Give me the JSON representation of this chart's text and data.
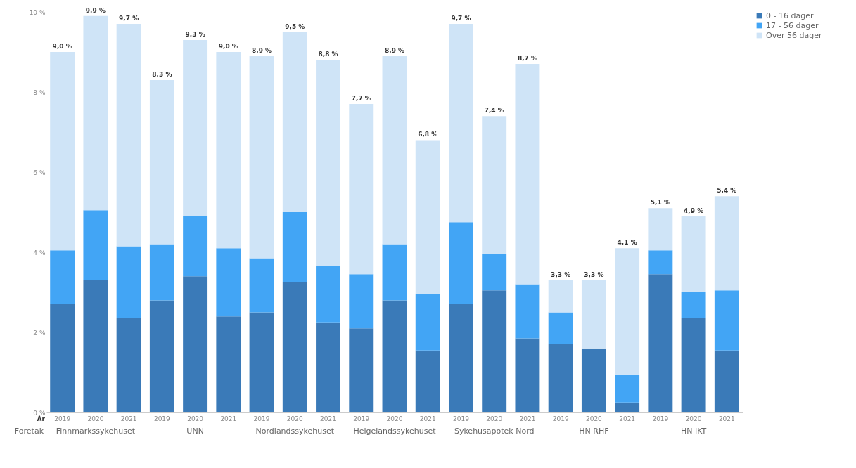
{
  "chart_data": {
    "type": "bar",
    "stacked": true,
    "categories": [
      "2019",
      "2020",
      "2021",
      "2019",
      "2020",
      "2021",
      "2019",
      "2020",
      "2021",
      "2019",
      "2020",
      "2021",
      "2019",
      "2020",
      "2021",
      "2019",
      "2020",
      "2021",
      "2019",
      "2020",
      "2021"
    ],
    "series": [
      {
        "name": "0 - 16 dager",
        "color": "#3a7ab8",
        "values": [
          2.7,
          3.3,
          2.35,
          2.8,
          3.4,
          2.4,
          2.5,
          3.25,
          2.25,
          2.1,
          2.8,
          1.55,
          2.7,
          3.05,
          1.85,
          1.7,
          1.6,
          0.25,
          3.45,
          2.35,
          1.55
        ]
      },
      {
        "name": "17 - 56 dager",
        "color": "#42a5f5",
        "values": [
          1.35,
          1.75,
          1.8,
          1.4,
          1.5,
          1.7,
          1.35,
          1.75,
          1.4,
          1.35,
          1.4,
          1.4,
          2.05,
          0.9,
          1.35,
          0.8,
          0,
          0.7,
          0.6,
          0.65,
          1.5
        ]
      },
      {
        "name": "Over 56 dager",
        "color": "#cfe4f7",
        "values": [
          4.95,
          4.85,
          5.55,
          4.1,
          4.4,
          4.9,
          5.05,
          4.5,
          5.15,
          4.25,
          4.7,
          3.85,
          4.95,
          3.45,
          5.5,
          0.8,
          1.7,
          3.15,
          1.05,
          1.9,
          2.35
        ]
      }
    ],
    "totals": [
      "9,0 %",
      "9,9 %",
      "9,7 %",
      "8,3 %",
      "9,3 %",
      "9,0 %",
      "8,9 %",
      "9,5 %",
      "8,8 %",
      "7,7 %",
      "8,9 %",
      "6,8 %",
      "9,7 %",
      "7,4 %",
      "8,7 %",
      "3,3 %",
      "3,3 %",
      "4,1 %",
      "5,1 %",
      "4,9 %",
      "5,4 %"
    ],
    "ylim": [
      0,
      10
    ],
    "yticks": [
      {
        "value": 0,
        "label": "0 %"
      },
      {
        "value": 2,
        "label": "2 %"
      },
      {
        "value": 4,
        "label": "4 %"
      },
      {
        "value": 6,
        "label": "6 %"
      },
      {
        "value": 8,
        "label": "8 %"
      },
      {
        "value": 10,
        "label": "10 %"
      }
    ],
    "annotations": [
      "År",
      "Foretak",
      "Finnmarkssykehuset",
      "UNN",
      "Nordlandssykehuset",
      "Helgelandssykehuset",
      "Sykehusapotek Nord",
      "HN RHF",
      "HN IKT"
    ],
    "legend": "right",
    "grid": false
  }
}
